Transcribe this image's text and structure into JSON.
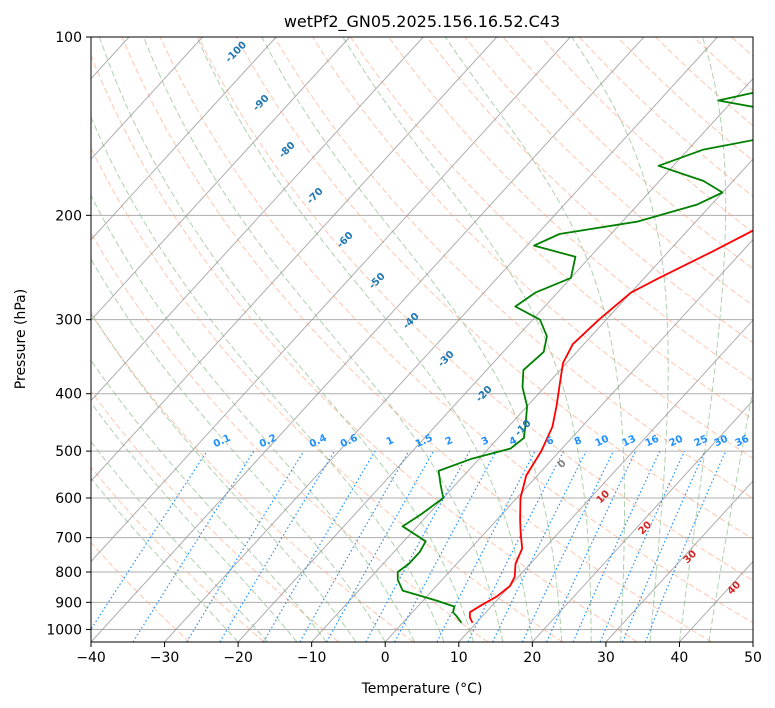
{
  "chart_data": {
    "type": "line",
    "title": "wetPf2_GN05.2025.156.16.52.C43",
    "xlabel": "Temperature (°C)",
    "ylabel": "Pressure (hPa)",
    "xlim": [
      -40,
      50
    ],
    "ylim": [
      1050,
      100
    ],
    "y_scale": "log",
    "x_ticks": [
      -40,
      -30,
      -20,
      -10,
      0,
      10,
      20,
      30,
      40,
      50
    ],
    "y_ticks": [
      100,
      200,
      300,
      400,
      500,
      600,
      700,
      800,
      900,
      1000
    ],
    "grid": true,
    "colors": {
      "temperature": "#ff0000",
      "dewpoint": "#008000",
      "isotherm": "#999999",
      "dry_adiabat": "#ffa07a",
      "moist_adiabat": "#8fbc8f",
      "mixing_ratio": "#1e90ff",
      "isotherm_label": "#1f77b4",
      "mixing_label": "#1e90ff",
      "dry_label": "#d62728",
      "zero_label": "#7f7f7f"
    },
    "series": [
      {
        "role": "temperature",
        "points": [
          [
            9.5,
            975
          ],
          [
            8.5,
            955
          ],
          [
            7.8,
            935
          ],
          [
            8.5,
            910
          ],
          [
            9.5,
            880
          ],
          [
            10,
            845
          ],
          [
            9.5,
            815
          ],
          [
            8,
            775
          ],
          [
            7,
            730
          ],
          [
            5,
            690
          ],
          [
            3,
            650
          ],
          [
            0.5,
            600
          ],
          [
            -1.5,
            550
          ],
          [
            -2.5,
            500
          ],
          [
            -4,
            455
          ],
          [
            -6,
            420
          ],
          [
            -8,
            390
          ],
          [
            -10.5,
            355
          ],
          [
            -11.5,
            330
          ],
          [
            -11,
            300
          ],
          [
            -10,
            270
          ],
          [
            -8,
            255
          ],
          [
            -4,
            230
          ],
          [
            1,
            200
          ],
          [
            6,
            178
          ],
          [
            11,
            160
          ],
          [
            13,
            148
          ],
          [
            17,
            135
          ],
          [
            21,
            122
          ],
          [
            25,
            112
          ],
          [
            27,
            104
          ],
          [
            28.5,
            100
          ]
        ]
      },
      {
        "role": "dewpoint",
        "points": [
          [
            8,
            975
          ],
          [
            6.5,
            950
          ],
          [
            5.5,
            935
          ],
          [
            5,
            915
          ],
          [
            2,
            895
          ],
          [
            -4,
            860
          ],
          [
            -6,
            825
          ],
          [
            -7,
            800
          ],
          [
            -6.5,
            775
          ],
          [
            -6.5,
            740
          ],
          [
            -7,
            710
          ],
          [
            -12,
            670
          ],
          [
            -11,
            640
          ],
          [
            -10,
            600
          ],
          [
            -12,
            570
          ],
          [
            -14,
            540
          ],
          [
            -11,
            515
          ],
          [
            -7,
            495
          ],
          [
            -6.5,
            475
          ],
          [
            -8,
            450
          ],
          [
            -10,
            420
          ],
          [
            -13,
            390
          ],
          [
            -15,
            365
          ],
          [
            -14.5,
            340
          ],
          [
            -16,
            320
          ],
          [
            -19,
            300
          ],
          [
            -24,
            285
          ],
          [
            -23,
            270
          ],
          [
            -20,
            255
          ],
          [
            -22,
            235
          ],
          [
            -29,
            225
          ],
          [
            -27,
            215
          ],
          [
            -18,
            205
          ],
          [
            -12,
            192
          ],
          [
            -10,
            183
          ],
          [
            -14,
            175
          ],
          [
            -22,
            165
          ],
          [
            -18,
            155
          ],
          [
            -10,
            147
          ],
          [
            -5,
            140
          ],
          [
            -10,
            135
          ],
          [
            -22,
            128
          ],
          [
            -18,
            124
          ],
          [
            -12,
            120
          ],
          [
            -5,
            115
          ],
          [
            -1,
            108
          ],
          [
            0.5,
            100
          ]
        ]
      }
    ],
    "isotherm_labels": [
      "-100",
      "-90",
      "-80",
      "-70",
      "-60",
      "-50",
      "-40",
      "-30",
      "-20",
      "-10"
    ],
    "mixing_ratio_labels": [
      "0.1",
      "0.2",
      "0.4",
      "0.6",
      "1",
      "1.5",
      "2",
      "3",
      "4",
      "6",
      "8",
      "10",
      "13",
      "16",
      "20",
      "25",
      "30",
      "36"
    ],
    "dry_adiabat_labels": [
      "10",
      "20",
      "30",
      "40"
    ],
    "zero_isotherm_label": "0"
  }
}
